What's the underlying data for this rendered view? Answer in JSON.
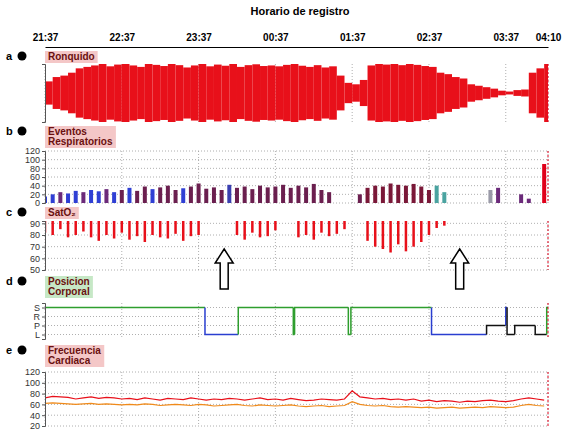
{
  "title": "Horario de registro",
  "xlim": [
    0,
    393
  ],
  "xticks": [
    {
      "value": 0,
      "label": "21:37"
    },
    {
      "value": 60,
      "label": "22:37"
    },
    {
      "value": 120,
      "label": "23:37"
    },
    {
      "value": 180,
      "label": "00:37"
    },
    {
      "value": 240,
      "label": "01:37"
    },
    {
      "value": 300,
      "label": "02:37"
    },
    {
      "value": 360,
      "label": "03:37"
    },
    {
      "value": 393,
      "label": "04:10"
    }
  ],
  "chart_data": [
    {
      "label": "a",
      "title": "Ronquido",
      "type": "envelope",
      "color": "#e8101a",
      "grid": true,
      "tick_labels": false,
      "ylim": [
        -100,
        100
      ],
      "x": [
        0,
        6,
        12,
        18,
        24,
        30,
        36,
        42,
        48,
        54,
        60,
        66,
        72,
        78,
        84,
        90,
        96,
        102,
        108,
        114,
        120,
        126,
        132,
        138,
        144,
        150,
        156,
        162,
        168,
        174,
        180,
        186,
        192,
        198,
        204,
        210,
        216,
        222,
        228,
        234,
        240,
        246,
        252,
        258,
        264,
        270,
        276,
        282,
        288,
        294,
        300,
        306,
        312,
        318,
        324,
        330,
        336,
        342,
        348,
        354,
        360,
        366,
        372,
        378,
        384,
        390
      ],
      "values": [
        40,
        55,
        60,
        70,
        85,
        90,
        95,
        100,
        92,
        98,
        100,
        95,
        90,
        100,
        97,
        93,
        100,
        96,
        88,
        95,
        100,
        92,
        98,
        94,
        100,
        90,
        96,
        99,
        93,
        95,
        92,
        97,
        100,
        94,
        90,
        96,
        88,
        92,
        60,
        35,
        30,
        45,
        95,
        100,
        98,
        100,
        96,
        100,
        97,
        93,
        90,
        70,
        65,
        55,
        50,
        30,
        25,
        20,
        15,
        8,
        5,
        10,
        12,
        70,
        85,
        100
      ]
    },
    {
      "label": "b",
      "title": "Eventos\nRespiratorios",
      "type": "bar",
      "grid": true,
      "ylim": [
        0,
        120
      ],
      "yticks": [
        0,
        20,
        40,
        60,
        80,
        100,
        120
      ],
      "x": [
        0,
        6,
        12,
        18,
        24,
        30,
        36,
        42,
        48,
        54,
        60,
        66,
        72,
        78,
        84,
        90,
        96,
        102,
        108,
        114,
        120,
        126,
        132,
        138,
        144,
        150,
        156,
        162,
        168,
        174,
        180,
        186,
        192,
        198,
        204,
        210,
        216,
        222,
        228,
        234,
        240,
        246,
        252,
        258,
        264,
        270,
        276,
        282,
        288,
        294,
        300,
        306,
        312,
        318,
        324,
        330,
        336,
        342,
        348,
        354,
        360,
        366,
        372,
        378,
        384,
        390
      ],
      "values": [
        15,
        20,
        25,
        22,
        28,
        25,
        30,
        27,
        32,
        25,
        30,
        35,
        28,
        38,
        32,
        36,
        40,
        30,
        34,
        38,
        45,
        33,
        36,
        30,
        42,
        35,
        38,
        32,
        40,
        36,
        38,
        42,
        35,
        40,
        36,
        44,
        30,
        25,
        null,
        null,
        null,
        20,
        35,
        40,
        38,
        45,
        42,
        40,
        44,
        38,
        30,
        40,
        25,
        null,
        null,
        null,
        null,
        null,
        30,
        35,
        null,
        null,
        20,
        10,
        null,
        90
      ],
      "colors": [
        "#2f3fd4",
        "#2f3fd4",
        "#6b2a7a",
        "#2f3fd4",
        "#2f3fd4",
        "#6b2a7a",
        "#2f3fd4",
        "#2f3fd4",
        "#6b2a7a",
        "#2f3fd4",
        "#6b1f4f",
        "#2f3fd4",
        "#6b1f4f",
        "#6b1f4f",
        "#2f3fd4",
        "#6b1f4f",
        "#6b1f4f",
        "#6b1f4f",
        "#2f3fd4",
        "#6b1f4f",
        "#6b1f4f",
        "#6b1f4f",
        "#6b1f4f",
        "#6b1f4f",
        "#3a3fb0",
        "#6b1f4f",
        "#6b1f4f",
        "#6b1f4f",
        "#6b1f4f",
        "#6b1f4f",
        "#6b1f4f",
        "#6b1f4f",
        "#6b1f4f",
        "#6b1f4f",
        "#6b1f4f",
        "#6b1f4f",
        "#6b1f4f",
        "#6b1f4f",
        "#6b1f4f",
        "#6b1f4f",
        "#6b1f4f",
        "#6b1f4f",
        "#7a1838",
        "#7a1838",
        "#7a1838",
        "#7a1838",
        "#7a1838",
        "#7a1838",
        "#7a1838",
        "#7a1838",
        "#7a1838",
        "#4aa3a0",
        "#4aa3a0",
        "#7a1838",
        "#7a1838",
        "#7a1838",
        "#7a1838",
        "#7a1838",
        "#9a9aa8",
        "#6b2a7a",
        "#6b2a7a",
        "#6b2a7a",
        "#6b2a7a",
        "#6b2a7a",
        "#6b2a7a",
        "#e0001a"
      ]
    },
    {
      "label": "c",
      "title": "SatO₂",
      "type": "spike",
      "color": "#e8101a",
      "grid": true,
      "ylim": [
        50,
        92
      ],
      "yticks": [
        50,
        60,
        70,
        80,
        90
      ],
      "x": [
        0,
        6,
        12,
        18,
        24,
        30,
        36,
        42,
        48,
        54,
        60,
        66,
        72,
        78,
        84,
        90,
        96,
        102,
        108,
        114,
        120,
        126,
        132,
        138,
        144,
        150,
        156,
        162,
        168,
        174,
        180,
        186,
        192,
        198,
        204,
        210,
        216,
        222,
        228,
        234,
        240,
        246,
        252,
        258,
        264,
        270,
        276,
        282,
        288,
        294,
        300,
        306,
        312,
        318,
        324,
        330,
        336,
        342,
        348,
        354,
        360,
        366,
        372,
        378,
        384,
        390
      ],
      "values": [
        82,
        80,
        85,
        78,
        80,
        83,
        78,
        75,
        80,
        77,
        82,
        76,
        79,
        74,
        80,
        78,
        77,
        81,
        75,
        79,
        80,
        null,
        null,
        null,
        null,
        80,
        76,
        82,
        78,
        79,
        84,
        null,
        null,
        78,
        80,
        76,
        82,
        79,
        81,
        85,
        null,
        null,
        75,
        70,
        68,
        65,
        72,
        66,
        70,
        74,
        80,
        86,
        88,
        null,
        null,
        null,
        null,
        null,
        null,
        null,
        null,
        null,
        null,
        null,
        null,
        null
      ],
      "annotations": [
        {
          "x": 140,
          "y": 68
        },
        {
          "x": 324,
          "y": 68
        }
      ]
    },
    {
      "label": "d",
      "title": "Posicion\nCorporal",
      "type": "step",
      "grid": true,
      "ylim": [
        -0.5,
        3.5
      ],
      "yticks": [
        {
          "value": 3,
          "label": "S"
        },
        {
          "value": 2,
          "label": "R"
        },
        {
          "value": 1,
          "label": "P"
        },
        {
          "value": 0,
          "label": "L"
        }
      ],
      "x": [
        0,
        125,
        151,
        194,
        195,
        237,
        239,
        302,
        345,
        360,
        361,
        367,
        383,
        392
      ],
      "values": [
        3,
        0,
        3,
        0,
        3,
        0,
        3,
        0,
        1,
        3,
        0,
        1,
        0,
        3
      ],
      "colors": [
        "#2e9e2e",
        "#2a3fd0",
        "#2e9e2e",
        "#2e9e2e",
        "#2e9e2e",
        "#2e9e2e",
        "#2e9e2e",
        "#2a3fd0",
        "#111111",
        "#2a3fd0",
        "#111111",
        "#111111",
        "#111111",
        "#2e9e2e"
      ]
    },
    {
      "label": "e",
      "title": "Frecuencia\nCardiaca",
      "type": "line",
      "grid": true,
      "ylim": [
        20,
        120
      ],
      "yticks": [
        20,
        40,
        60,
        80,
        100,
        120
      ],
      "x": [
        0,
        6,
        12,
        18,
        24,
        30,
        36,
        42,
        48,
        54,
        60,
        66,
        72,
        78,
        84,
        90,
        96,
        102,
        108,
        114,
        120,
        126,
        132,
        138,
        144,
        150,
        156,
        162,
        168,
        174,
        180,
        186,
        192,
        198,
        204,
        210,
        216,
        222,
        228,
        234,
        240,
        246,
        252,
        258,
        264,
        270,
        276,
        282,
        288,
        294,
        300,
        306,
        312,
        318,
        324,
        330,
        336,
        342,
        348,
        354,
        360,
        366,
        372,
        378,
        384,
        390
      ],
      "series": [
        {
          "color": "#f08a1a",
          "values": [
            62,
            63,
            62,
            61,
            60,
            61,
            62,
            60,
            61,
            60,
            59,
            60,
            59,
            61,
            60,
            58,
            59,
            60,
            59,
            58,
            60,
            59,
            57,
            58,
            59,
            60,
            58,
            57,
            59,
            58,
            57,
            58,
            59,
            57,
            56,
            57,
            58,
            56,
            57,
            58,
            65,
            60,
            58,
            57,
            58,
            56,
            55,
            56,
            55,
            54,
            55,
            53,
            54,
            55,
            53,
            54,
            55,
            54,
            56,
            55,
            54,
            55,
            58,
            60,
            58,
            57
          ]
        },
        {
          "color": "#e8101a",
          "values": [
            72,
            75,
            74,
            73,
            70,
            72,
            74,
            71,
            73,
            72,
            70,
            71,
            69,
            72,
            70,
            68,
            71,
            70,
            69,
            72,
            70,
            68,
            70,
            69,
            71,
            70,
            68,
            70,
            72,
            69,
            70,
            68,
            71,
            69,
            67,
            68,
            70,
            69,
            68,
            70,
            85,
            74,
            72,
            70,
            71,
            69,
            70,
            68,
            70,
            66,
            68,
            65,
            67,
            66,
            64,
            66,
            65,
            67,
            68,
            66,
            65,
            67,
            70,
            72,
            70,
            68
          ]
        }
      ]
    }
  ]
}
